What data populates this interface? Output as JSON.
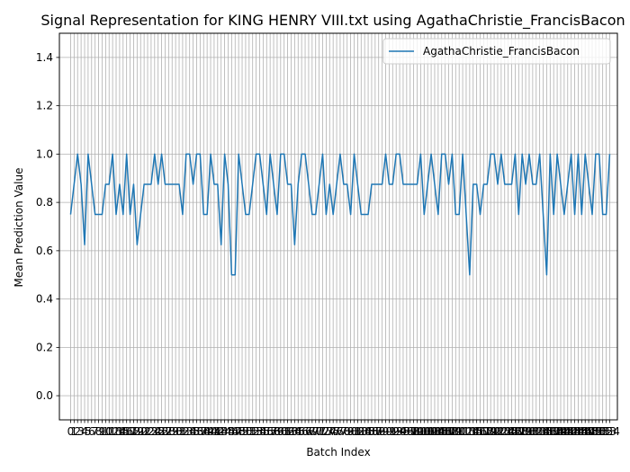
{
  "chart_data": {
    "type": "line",
    "title": "Signal Representation for KING HENRY VIII.txt using AgathaChristie_FrancisBacon",
    "xlabel": "Batch Index",
    "ylabel": "Mean Prediction Value",
    "ylim": [
      -0.1,
      1.5
    ],
    "yticks": [
      "0.0",
      "0.2",
      "0.4",
      "0.6",
      "0.8",
      "1.0",
      "1.2",
      "1.4"
    ],
    "xlim": [
      -3.2,
      156.2
    ],
    "grid": true,
    "legend_position": "top-right",
    "series": [
      {
        "name": "AgathaChristie_FrancisBacon",
        "color": "#1f77b4",
        "values": [
          0.75,
          0.875,
          1.0,
          0.875,
          0.625,
          1.0,
          0.875,
          0.75,
          0.75,
          0.75,
          0.875,
          0.875,
          1.0,
          0.75,
          0.875,
          0.75,
          1.0,
          0.75,
          0.875,
          0.625,
          0.75,
          0.875,
          0.875,
          0.875,
          1.0,
          0.875,
          1.0,
          0.875,
          0.875,
          0.875,
          0.875,
          0.875,
          0.75,
          1.0,
          1.0,
          0.875,
          1.0,
          1.0,
          0.75,
          0.75,
          1.0,
          0.875,
          0.875,
          0.625,
          1.0,
          0.875,
          0.5,
          0.5,
          1.0,
          0.875,
          0.75,
          0.75,
          0.875,
          1.0,
          1.0,
          0.875,
          0.75,
          1.0,
          0.875,
          0.75,
          1.0,
          1.0,
          0.875,
          0.875,
          0.625,
          0.875,
          1.0,
          1.0,
          0.875,
          0.75,
          0.75,
          0.875,
          1.0,
          0.75,
          0.875,
          0.75,
          0.875,
          1.0,
          0.875,
          0.875,
          0.75,
          1.0,
          0.875,
          0.75,
          0.75,
          0.75,
          0.875,
          0.875,
          0.875,
          0.875,
          1.0,
          0.875,
          0.875,
          1.0,
          1.0,
          0.875,
          0.875,
          0.875,
          0.875,
          0.875,
          1.0,
          0.75,
          0.875,
          1.0,
          0.875,
          0.75,
          1.0,
          1.0,
          0.875,
          1.0,
          0.75,
          0.75,
          1.0,
          0.75,
          0.5,
          0.875,
          0.875,
          0.75,
          0.875,
          0.875,
          1.0,
          1.0,
          0.875,
          1.0,
          0.875,
          0.875,
          0.875,
          1.0,
          0.75,
          1.0,
          0.875,
          1.0,
          0.875,
          0.875,
          1.0,
          0.75,
          0.5,
          1.0,
          0.75,
          1.0,
          0.875,
          0.75,
          0.875,
          1.0,
          0.75,
          1.0,
          0.75,
          1.0,
          0.875,
          0.75,
          1.0,
          1.0,
          0.75,
          0.75,
          1.0
        ]
      }
    ]
  }
}
